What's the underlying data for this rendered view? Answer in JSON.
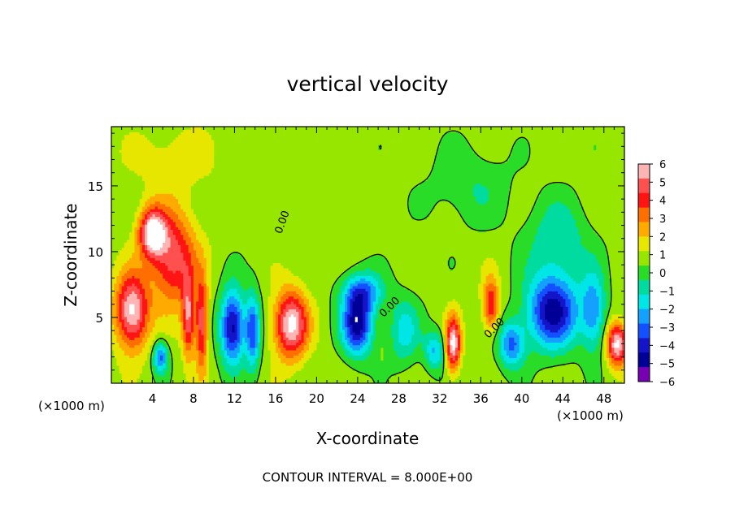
{
  "chart_data": {
    "type": "heatmap",
    "title": "vertical velocity",
    "xlabel": "X-coordinate",
    "ylabel": "Z-coordinate",
    "x_unit_left": "(×1000 m)",
    "x_unit_right": "(×1000 m)",
    "footer": "CONTOUR INTERVAL = 8.000E+00",
    "xlim": [
      0,
      50
    ],
    "ylim": [
      0,
      19.5
    ],
    "x_ticks": [
      4,
      8,
      12,
      16,
      20,
      24,
      28,
      32,
      36,
      40,
      44,
      48
    ],
    "y_ticks": [
      5,
      10,
      15
    ],
    "colorbar": {
      "range": [
        -6,
        6
      ],
      "ticks": [
        6,
        5,
        4,
        3,
        2,
        1,
        0,
        -1,
        -2,
        -3,
        -4,
        -5,
        -6
      ],
      "tick_labels": [
        "6",
        "5",
        "4",
        "3",
        "2",
        "1",
        "0",
        "−1",
        "−2",
        "−3",
        "−4",
        "−5",
        "−6"
      ],
      "colors": [
        "#ffb4b4",
        "#ff5050",
        "#ff1414",
        "#ff6e00",
        "#ffaa00",
        "#e6e600",
        "#96e600",
        "#28dc28",
        "#00dca0",
        "#00e6e6",
        "#14a0ff",
        "#1450ff",
        "#1414c8",
        "#000096",
        "#7800b4"
      ]
    },
    "contour_labels": [
      "0.00",
      "0.00",
      "0.00",
      "0.00"
    ],
    "features": [
      {
        "x": 2.0,
        "z": 5.5,
        "w": 6.0,
        "sx": 1.6,
        "sz": 2.8
      },
      {
        "x": 4.0,
        "z": 11.5,
        "w": 6.0,
        "sx": 1.3,
        "sz": 1.8
      },
      {
        "x": 6.0,
        "z": 9.5,
        "w": 4.5,
        "sx": 2.2,
        "sz": 3.5
      },
      {
        "x": 7.5,
        "z": 5.0,
        "w": 4.5,
        "sx": 0.6,
        "sz": 3.0
      },
      {
        "x": 8.8,
        "z": 4.5,
        "w": 4.5,
        "sx": 0.6,
        "sz": 3.5
      },
      {
        "x": 4.8,
        "z": 2.0,
        "w": -4.0,
        "sx": 0.7,
        "sz": 1.2
      },
      {
        "x": 11.8,
        "z": 4.3,
        "w": -6.0,
        "sx": 1.2,
        "sz": 2.8
      },
      {
        "x": 13.8,
        "z": 4.0,
        "w": -4.5,
        "sx": 0.7,
        "sz": 2.8
      },
      {
        "x": 17.5,
        "z": 4.5,
        "w": 6.0,
        "sx": 1.6,
        "sz": 2.5
      },
      {
        "x": 24.0,
        "z": 4.5,
        "w": -6.0,
        "sx": 1.5,
        "sz": 2.3
      },
      {
        "x": 24.5,
        "z": 7.0,
        "w": -3.5,
        "sx": 2.0,
        "sz": 1.5
      },
      {
        "x": 28.5,
        "z": 4.0,
        "w": -2.5,
        "sx": 1.5,
        "sz": 2.5
      },
      {
        "x": 31.5,
        "z": 2.5,
        "w": -3.0,
        "sx": 1.0,
        "sz": 1.5
      },
      {
        "x": 33.3,
        "z": 3.0,
        "w": 6.0,
        "sx": 0.7,
        "sz": 2.0
      },
      {
        "x": 37.0,
        "z": 6.0,
        "w": 4.0,
        "sx": 0.8,
        "sz": 2.0
      },
      {
        "x": 39.0,
        "z": 3.0,
        "w": -4.0,
        "sx": 1.3,
        "sz": 1.8
      },
      {
        "x": 43.0,
        "z": 5.5,
        "w": -6.0,
        "sx": 2.5,
        "sz": 2.8
      },
      {
        "x": 43.5,
        "z": 11.0,
        "w": -2.0,
        "sx": 3.0,
        "sz": 3.0
      },
      {
        "x": 47.0,
        "z": 5.5,
        "w": -3.5,
        "sx": 1.2,
        "sz": 3.0
      },
      {
        "x": 49.3,
        "z": 3.0,
        "w": 6.0,
        "sx": 1.0,
        "sz": 1.6
      },
      {
        "x": 6.0,
        "z": 17.0,
        "w": 1.0,
        "sx": 4.0,
        "sz": 2.5
      },
      {
        "x": 35.0,
        "z": 15.0,
        "w": -1.2,
        "sx": 4.0,
        "sz": 3.0
      }
    ]
  }
}
